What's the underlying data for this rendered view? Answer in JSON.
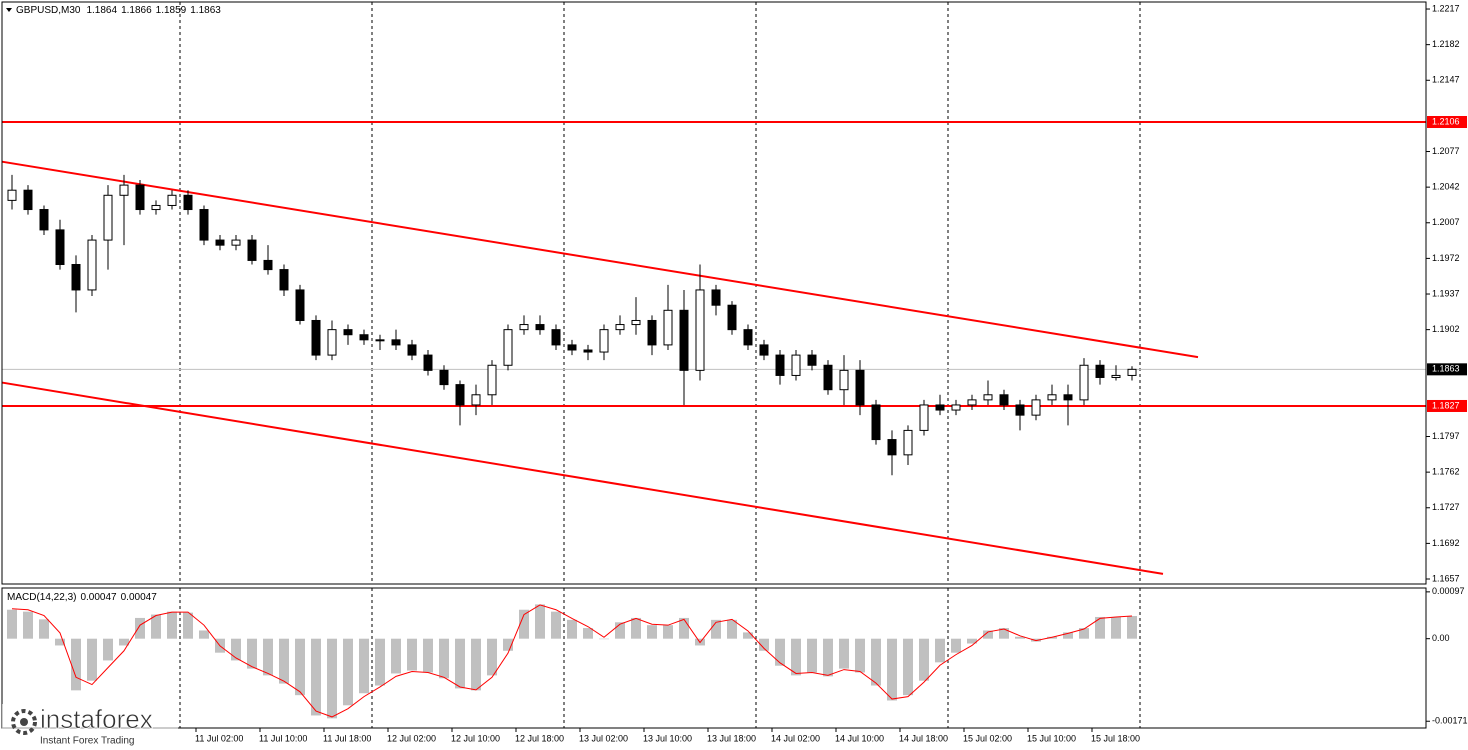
{
  "chart_data": [
    {
      "type": "candlestick",
      "title": "GBPUSD,M30",
      "ohlc_header": [
        1.1864,
        1.1866,
        1.1859,
        1.1863
      ],
      "categories": [
        null,
        null,
        null,
        null,
        null,
        null,
        null,
        null,
        null,
        null,
        null,
        null,
        "11 Jul 02:00",
        null,
        null,
        null,
        "11 Jul 10:00",
        null,
        null,
        null,
        "11 Jul 18:00",
        null,
        null,
        null,
        "12 Jul 02:00",
        null,
        null,
        null,
        "12 Jul 10:00",
        null,
        null,
        null,
        "12 Jul 18:00",
        null,
        null,
        null,
        "13 Jul 02:00",
        null,
        null,
        null,
        "13 Jul 10:00",
        null,
        null,
        null,
        "13 Jul 18:00",
        null,
        null,
        null,
        "14 Jul 02:00",
        null,
        null,
        null,
        "14 Jul 10:00",
        null,
        null,
        null,
        "14 Jul 18:00",
        null,
        null,
        null,
        "15 Jul 02:00",
        null,
        null,
        null,
        "15 Jul 10:00",
        null,
        null,
        null,
        "15 Jul 18:00",
        null,
        null
      ],
      "open": [
        1.2029,
        1.2039,
        1.202,
        1.2,
        1.1966,
        1.1941,
        1.199,
        1.2034,
        1.2044,
        1.202,
        1.2024,
        1.2034,
        1.202,
        1.199,
        1.1985,
        1.199,
        1.197,
        1.1961,
        1.1941,
        1.1911,
        1.1877,
        1.1902,
        1.1897,
        1.1892,
        1.1892,
        1.1887,
        1.1877,
        1.1862,
        1.1848,
        1.1828,
        1.1838,
        1.1867,
        1.1902,
        1.1907,
        1.1902,
        1.1887,
        1.1882,
        1.188,
        1.1902,
        1.1907,
        1.1911,
        1.1887,
        1.1921,
        1.1862,
        1.1941,
        1.1926,
        1.1902,
        1.1887,
        1.1877,
        1.1857,
        1.1877,
        1.1867,
        1.1843,
        1.1862,
        1.1828,
        1.1794,
        1.1779,
        1.1803,
        1.1828,
        1.1823,
        1.1828,
        1.1833,
        1.1838,
        1.1828,
        1.1818,
        1.1833,
        1.1838,
        1.1833,
        1.1867,
        1.1855,
        1.1857
      ],
      "high": [
        1.2054,
        1.2044,
        1.2024,
        1.201,
        1.1975,
        1.1995,
        1.2044,
        1.2054,
        1.2049,
        1.2029,
        1.2039,
        1.2039,
        1.2024,
        1.1995,
        1.1995,
        1.1995,
        1.1985,
        1.1966,
        1.1946,
        1.1916,
        1.1911,
        1.1907,
        1.1902,
        1.1897,
        1.1902,
        1.1892,
        1.1882,
        1.1867,
        1.1852,
        1.1848,
        1.1872,
        1.1907,
        1.1916,
        1.1916,
        1.1907,
        1.1892,
        1.1887,
        1.1907,
        1.1916,
        1.1934,
        1.1916,
        1.1946,
        1.1941,
        1.1966,
        1.1946,
        1.193,
        1.1907,
        1.1892,
        1.1882,
        1.1882,
        1.1882,
        1.1872,
        1.1877,
        1.1872,
        1.1833,
        1.1803,
        1.1808,
        1.1833,
        1.1838,
        1.1833,
        1.1838,
        1.1852,
        1.1843,
        1.1833,
        1.1838,
        1.1848,
        1.1848,
        1.1874,
        1.1872,
        1.1867,
        1.1866
      ],
      "low": [
        1.202,
        1.2015,
        1.1995,
        1.1961,
        1.1919,
        1.1935,
        1.1961,
        1.1985,
        1.2015,
        1.2015,
        1.202,
        1.2015,
        1.1985,
        1.198,
        1.198,
        1.1966,
        1.1956,
        1.1935,
        1.1907,
        1.1872,
        1.1872,
        1.1887,
        1.1887,
        1.1882,
        1.1882,
        1.1872,
        1.1857,
        1.1843,
        1.1808,
        1.1818,
        1.1828,
        1.1862,
        1.1897,
        1.1897,
        1.1882,
        1.1877,
        1.1872,
        1.1872,
        1.1897,
        1.1897,
        1.1877,
        1.1882,
        1.1828,
        1.1852,
        1.1916,
        1.1897,
        1.1882,
        1.1872,
        1.1848,
        1.1852,
        1.1862,
        1.1838,
        1.1828,
        1.1818,
        1.1789,
        1.1759,
        1.1769,
        1.1798,
        1.1818,
        1.1818,
        1.1823,
        1.1828,
        1.1823,
        1.1803,
        1.1813,
        1.1828,
        1.1808,
        1.1828,
        1.1848,
        1.1852,
        1.1852
      ],
      "close": [
        1.2039,
        1.202,
        1.2,
        1.1966,
        1.1941,
        1.199,
        1.2034,
        1.2044,
        1.202,
        1.2024,
        1.2034,
        1.202,
        1.199,
        1.1985,
        1.199,
        1.197,
        1.1961,
        1.1941,
        1.1911,
        1.1877,
        1.1902,
        1.1897,
        1.1892,
        1.1892,
        1.1887,
        1.1877,
        1.1862,
        1.1848,
        1.1828,
        1.1838,
        1.1867,
        1.1902,
        1.1907,
        1.1902,
        1.1887,
        1.1882,
        1.188,
        1.1902,
        1.1907,
        1.1911,
        1.1887,
        1.1921,
        1.1862,
        1.1941,
        1.1926,
        1.1902,
        1.1887,
        1.1877,
        1.1857,
        1.1877,
        1.1867,
        1.1843,
        1.1862,
        1.1828,
        1.1794,
        1.1779,
        1.1803,
        1.1828,
        1.1823,
        1.1828,
        1.1833,
        1.1838,
        1.1828,
        1.1818,
        1.1833,
        1.1838,
        1.1833,
        1.1867,
        1.1855,
        1.1857,
        1.1863
      ],
      "colors": {
        "up": "#ffffff",
        "down": "#000000",
        "wick": "#000000"
      },
      "ylim": [
        1.16521,
        1.22239
      ],
      "yticks": [
        1.2217,
        1.2182,
        1.2147,
        1.2077,
        1.2042,
        1.2007,
        1.1972,
        1.1937,
        1.1902,
        1.1797,
        1.1762,
        1.1727,
        1.1692,
        1.1657
      ],
      "levels": [
        {
          "value": 1.2106,
          "color": "#ff0000"
        },
        {
          "value": 1.1827,
          "color": "#ff0000"
        }
      ],
      "last_price": {
        "value": 1.1863,
        "color": "#c0c0c0"
      },
      "channel_lines": [
        {
          "start": 1.2067,
          "end": 1.1875,
          "color": "#ff0000"
        },
        {
          "start": 1.185,
          "end": 1.1662,
          "color": "#ff0000"
        }
      ]
    },
    {
      "type": "macd",
      "title": "MACD(14,22,3)",
      "header_values": [
        0.00047,
        0.00047
      ],
      "histogram": {
        "color": "#c0c0c0",
        "values": [
          0.0006,
          0.00056,
          0.0004,
          -0.00014,
          -0.00107,
          -0.00087,
          -0.00045,
          -0.00014,
          0.00043,
          0.0005,
          0.00056,
          0.00054,
          0.00017,
          -0.00029,
          -0.00045,
          -0.00062,
          -0.00076,
          -0.00093,
          -0.00117,
          -0.00159,
          -0.00165,
          -0.00138,
          -0.00113,
          -0.00097,
          -0.00072,
          -0.00066,
          -0.0007,
          -0.00082,
          -0.00103,
          -0.00107,
          -0.00076,
          -0.00025,
          0.0006,
          0.00071,
          0.00056,
          0.00039,
          0.00022,
          0,
          0.00034,
          0.00043,
          0.00028,
          0.00028,
          0.00043,
          -0.00014,
          0.00039,
          0.00039,
          0.00013,
          -0.00025,
          -0.00056,
          -0.00076,
          -0.0007,
          -0.00078,
          -0.00062,
          -0.0007,
          -0.00097,
          -0.00128,
          -0.00117,
          -0.00087,
          -0.00049,
          -0.00029,
          -0.0001,
          0.00017,
          0.00022,
          4e-05,
          -6e-05,
          4e-05,
          0.00013,
          0.00022,
          0.00045,
          0.00045,
          0.00047
        ]
      },
      "signal": {
        "color": "#ff0000",
        "values": [
          0.00062,
          0.0006,
          0.00048,
          0.00012,
          -0.0008,
          -0.00095,
          -0.0006,
          -0.00025,
          0.00028,
          0.00048,
          0.00055,
          0.00055,
          0.00028,
          -0.00015,
          -0.0004,
          -0.00058,
          -0.00072,
          -0.00088,
          -0.0011,
          -0.0015,
          -0.00162,
          -0.00145,
          -0.0012,
          -0.001,
          -0.00078,
          -0.00068,
          -0.0007,
          -0.0008,
          -0.001,
          -0.00106,
          -0.0008,
          -0.0003,
          0.0005,
          0.0007,
          0.0006,
          0.00042,
          0.00025,
          3e-05,
          0.0003,
          0.00042,
          0.0003,
          0.00028,
          0.0004,
          -8e-05,
          0.00034,
          0.0004,
          0.00016,
          -0.0002,
          -0.0005,
          -0.00072,
          -0.0007,
          -0.00076,
          -0.00064,
          -0.00068,
          -0.00092,
          -0.00125,
          -0.0012,
          -0.0009,
          -0.00055,
          -0.00033,
          -0.00014,
          0.00014,
          0.0002,
          6e-05,
          -4e-05,
          3e-05,
          0.00011,
          0.0002,
          0.00042,
          0.00045,
          0.00047
        ]
      },
      "ylim": [
        -0.00185,
        0.00105
      ],
      "yticks": [
        0.00097,
        {
          "value": 0,
          "label": "0.00"
        },
        -0.00171
      ]
    }
  ],
  "watermark": {
    "brand": "instaforex",
    "tagline": "Instant Forex Trading"
  }
}
